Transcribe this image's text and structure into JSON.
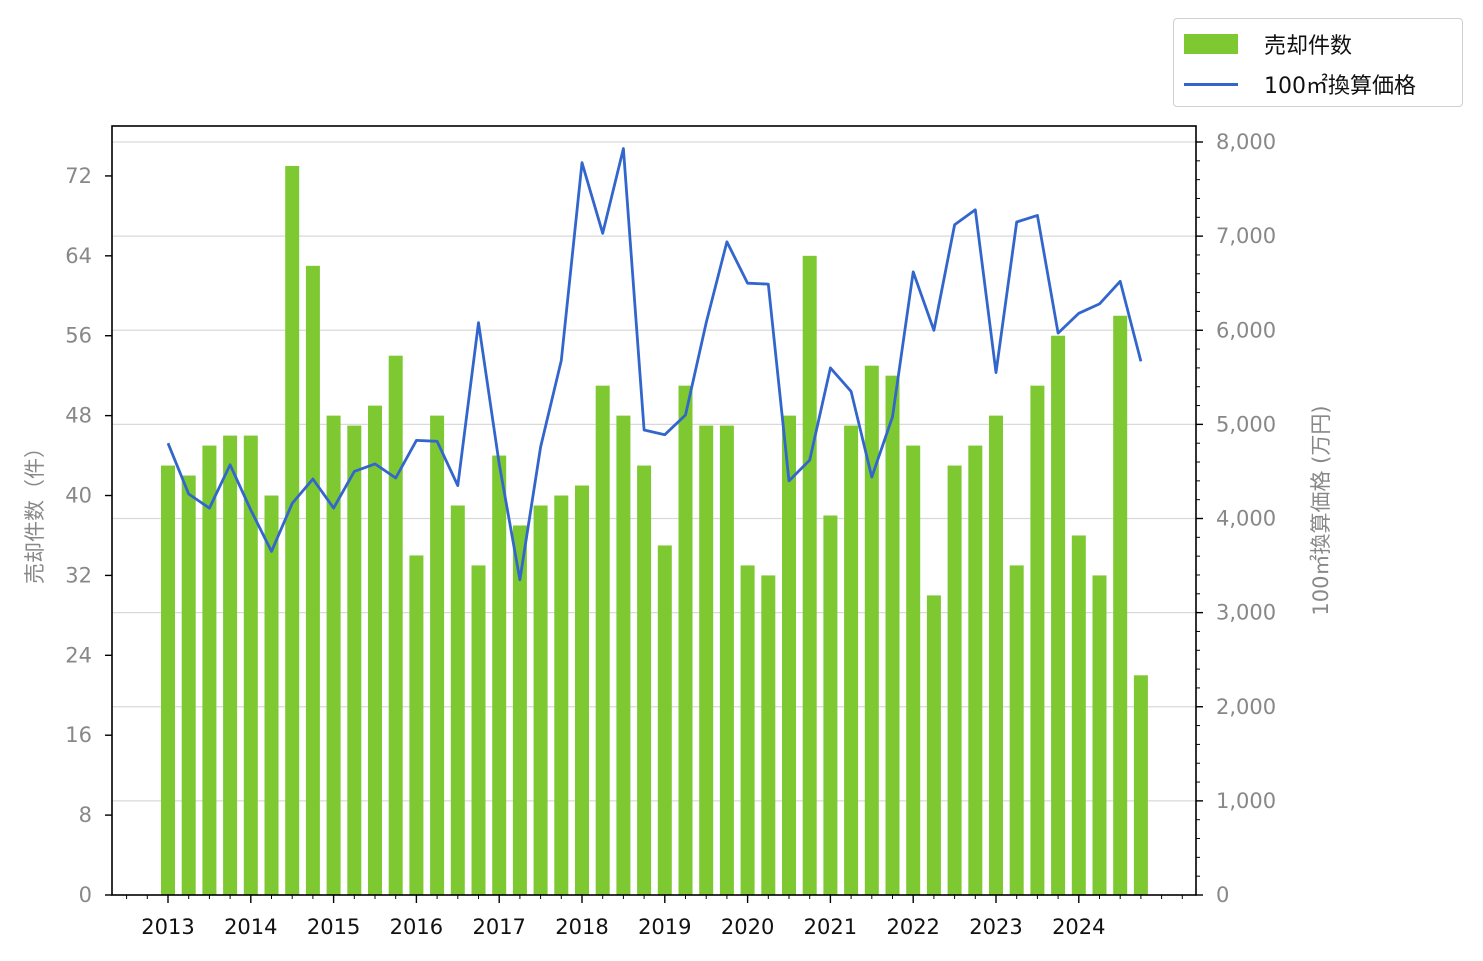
{
  "chart_data": {
    "type": "bar+line",
    "x_tick_labels": [
      "2013",
      "2014",
      "2015",
      "2016",
      "2017",
      "2018",
      "2019",
      "2020",
      "2021",
      "2022",
      "2023",
      "2024"
    ],
    "left_axis": {
      "label": "売却件数（件）",
      "ticks": [
        "0",
        "8",
        "16",
        "24",
        "32",
        "40",
        "48",
        "56",
        "64",
        "72"
      ],
      "ylim": [
        0,
        77
      ]
    },
    "right_axis": {
      "label": "100㎡換算価格 (万円)",
      "ticks": [
        "0",
        "1,000",
        "2,000",
        "3,000",
        "4,000",
        "5,000",
        "6,000",
        "7,000",
        "8,000"
      ],
      "ylim": [
        0,
        8170
      ]
    },
    "grid": "horizontal (right axis)",
    "legend_position": "top-right",
    "series": [
      {
        "name": "売却件数",
        "kind": "bar",
        "axis": "left",
        "color": "#7ec832",
        "values": [
          43,
          42,
          45,
          46,
          46,
          40,
          73,
          63,
          48,
          47,
          49,
          54,
          34,
          48,
          39,
          33,
          44,
          37,
          39,
          40,
          41,
          51,
          48,
          43,
          35,
          51,
          47,
          47,
          33,
          32,
          48,
          64,
          38,
          47,
          53,
          52,
          45,
          30,
          43,
          45,
          48,
          33,
          51,
          56,
          36,
          32,
          58,
          22
        ]
      },
      {
        "name": "100㎡換算価格",
        "kind": "line",
        "axis": "right",
        "color": "#3366cc",
        "values": [
          4800,
          4260,
          4110,
          4570,
          4090,
          3650,
          4160,
          4420,
          4110,
          4500,
          4580,
          4430,
          4830,
          4820,
          4350,
          6080,
          4580,
          3350,
          4760,
          5680,
          7780,
          7030,
          7930,
          4940,
          4890,
          5100,
          6080,
          6940,
          6500,
          6490,
          4400,
          4620,
          5600,
          5350,
          4440,
          5080,
          6620,
          6000,
          7120,
          7280,
          5550,
          7150,
          7220,
          5970,
          6180,
          6280,
          6520,
          5670
        ]
      }
    ]
  },
  "legend": {
    "bar_label": "売却件数",
    "line_label": "100㎡換算価格"
  }
}
